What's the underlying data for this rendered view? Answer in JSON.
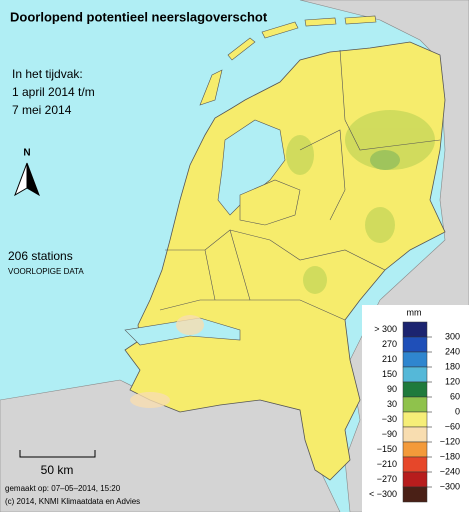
{
  "header": {
    "title": "Doorlopend potentieel neerslagoverschot"
  },
  "period": {
    "label": "In het tijdvak:",
    "start": "1 april 2014 t/m",
    "end": "7 mei 2014"
  },
  "north": "N",
  "stations": "206 stations",
  "status": "VOORLOPIGE DATA",
  "scale": "50 km",
  "footer": {
    "created": "gemaakt op: 07–05–2014, 15:20",
    "copyright": "(c) 2014, KNMI Klimaatdata en Advies"
  },
  "legend": {
    "unit": "mm",
    "classes": [
      {
        "label": "> 300",
        "color": "#1c2470"
      },
      {
        "label": "270",
        "color": "#1f4fb8"
      },
      {
        "label": "210",
        "color": "#2f86cf"
      },
      {
        "label": "150",
        "color": "#55b8d8"
      },
      {
        "label": "90",
        "color": "#1f7a3c"
      },
      {
        "label": "30",
        "color": "#8fc24c"
      },
      {
        "label": "−30",
        "color": "#f6ee78"
      },
      {
        "label": "−90",
        "color": "#f8ddb0"
      },
      {
        "label": "−150",
        "color": "#f39a3a"
      },
      {
        "label": "−210",
        "color": "#e6472a"
      },
      {
        "label": "−270",
        "color": "#b71d1d"
      },
      {
        "label": "< −300",
        "color": "#4a2016"
      }
    ],
    "bounds": [
      "300",
      "240",
      "180",
      "120",
      "60",
      "0",
      "−60",
      "−120",
      "−180",
      "−240",
      "−300"
    ]
  }
}
